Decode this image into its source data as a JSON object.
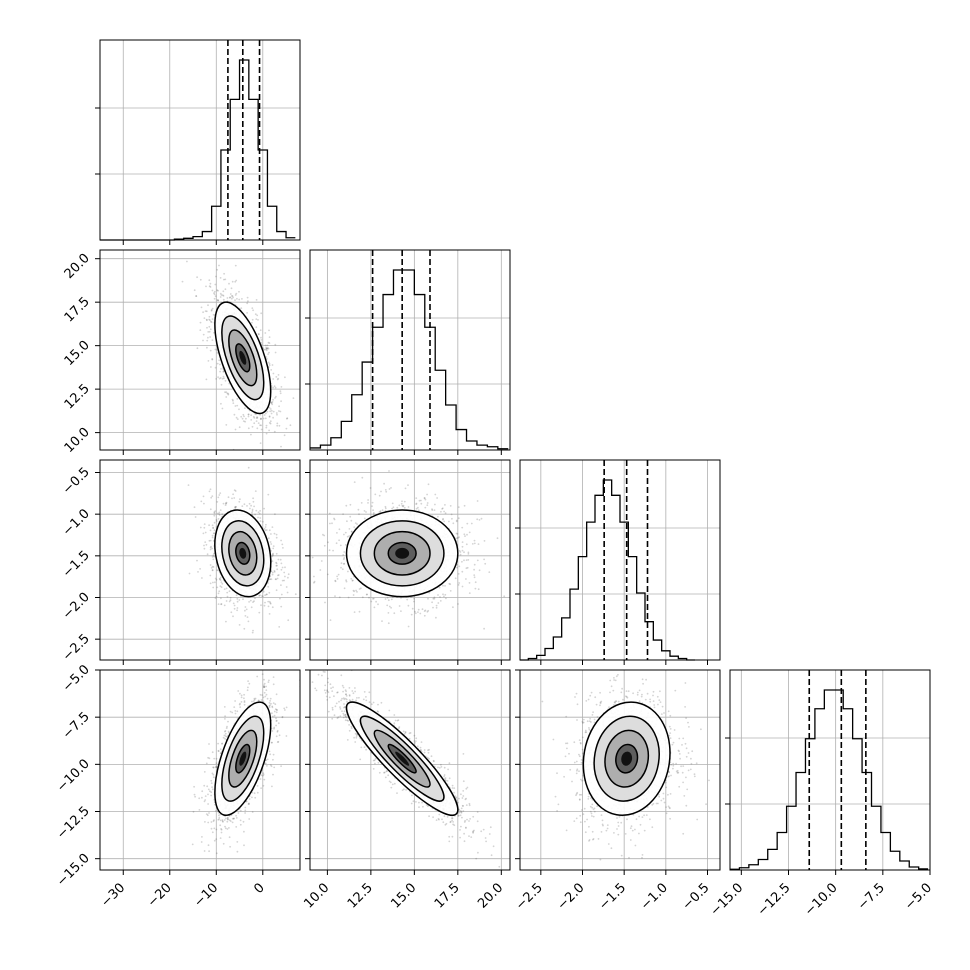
{
  "chart_data": {
    "type": "corner",
    "title": "",
    "parameters": [
      {
        "range": [
          -35,
          8
        ],
        "ticks": [
          -30,
          -20,
          -10,
          0
        ],
        "tick_labels": [
          "−30",
          "−20",
          "−10",
          "0"
        ],
        "hist_bins": [
          -35,
          -33,
          -31,
          -29,
          -27,
          -25,
          -23,
          -21,
          -19,
          -17,
          -15,
          -13,
          -11,
          -9,
          -7,
          -5,
          -3,
          -1,
          1,
          3,
          5,
          7
        ],
        "hist_counts": [
          0,
          0,
          0,
          0,
          0,
          0,
          0,
          0,
          3,
          6,
          12,
          30,
          120,
          320,
          500,
          640,
          500,
          320,
          120,
          30,
          8
        ],
        "quantiles": [
          -7.5,
          -4.3,
          -0.7
        ]
      },
      {
        "range": [
          9,
          20.5
        ],
        "ticks": [
          10.0,
          12.5,
          15.0,
          17.5,
          20.0
        ],
        "tick_labels": [
          "10.0",
          "12.5",
          "15.0",
          "17.5",
          "20.0"
        ],
        "hist_bins": [
          9.0,
          9.6,
          10.2,
          10.8,
          11.4,
          12.0,
          12.6,
          13.2,
          13.8,
          14.4,
          15.0,
          15.6,
          16.2,
          16.8,
          17.4,
          18.0,
          18.6,
          19.2,
          19.8,
          20.4
        ],
        "hist_counts": [
          5,
          12,
          30,
          70,
          135,
          215,
          300,
          380,
          440,
          440,
          380,
          300,
          195,
          110,
          50,
          22,
          12,
          8,
          3
        ],
        "quantiles": [
          12.6,
          14.3,
          15.9
        ]
      },
      {
        "range": [
          -2.75,
          -0.35
        ],
        "ticks": [
          -2.5,
          -2.0,
          -1.5,
          -1.0,
          -0.5
        ],
        "tick_labels": [
          "−2.5",
          "−2.0",
          "−1.5",
          "−1.0",
          "−0.5"
        ],
        "hist_bins": [
          -2.75,
          -2.65,
          -2.55,
          -2.45,
          -2.35,
          -2.25,
          -2.15,
          -2.05,
          -1.95,
          -1.85,
          -1.75,
          -1.65,
          -1.55,
          -1.45,
          -1.35,
          -1.25,
          -1.15,
          -1.05,
          -0.95,
          -0.85,
          -0.75,
          -0.65
        ],
        "hist_counts": [
          0,
          4,
          12,
          30,
          60,
          110,
          185,
          270,
          360,
          430,
          470,
          430,
          360,
          270,
          175,
          100,
          52,
          24,
          10,
          4,
          0
        ],
        "quantiles": [
          -1.74,
          -1.47,
          -1.22
        ]
      },
      {
        "range": [
          -15.6,
          -5.0
        ],
        "ticks": [
          -15.0,
          -12.5,
          -10.0,
          -7.5,
          -5.0
        ],
        "tick_labels": [
          "−15.0",
          "−12.5",
          "−10.0",
          "−7.5",
          "−5.0"
        ],
        "hist_bins": [
          -15.6,
          -15.1,
          -14.6,
          -14.1,
          -13.6,
          -13.1,
          -12.6,
          -12.1,
          -11.6,
          -11.1,
          -10.6,
          -10.1,
          -9.6,
          -9.1,
          -8.6,
          -8.1,
          -7.6,
          -7.1,
          -6.6,
          -6.1,
          -5.6,
          -5.1
        ],
        "hist_counts": [
          2,
          6,
          14,
          28,
          55,
          100,
          170,
          260,
          350,
          430,
          480,
          480,
          430,
          350,
          260,
          170,
          100,
          50,
          24,
          8,
          3
        ],
        "quantiles": [
          -11.4,
          -9.7,
          -8.4
        ]
      }
    ],
    "pairs": [
      {
        "row": 1,
        "col": 0,
        "mean": [
          -4.3,
          14.3
        ],
        "sd": [
          3.0,
          1.6
        ],
        "corr": -0.6
      },
      {
        "row": 2,
        "col": 0,
        "mean": [
          -4.3,
          -1.47
        ],
        "sd": [
          3.0,
          0.26
        ],
        "corr": -0.2
      },
      {
        "row": 2,
        "col": 1,
        "mean": [
          14.3,
          -1.47
        ],
        "sd": [
          1.6,
          0.26
        ],
        "corr": 0.0
      },
      {
        "row": 3,
        "col": 0,
        "mean": [
          -4.3,
          -9.7
        ],
        "sd": [
          3.0,
          1.5
        ],
        "corr": 0.6
      },
      {
        "row": 3,
        "col": 1,
        "mean": [
          14.3,
          -9.7
        ],
        "sd": [
          1.6,
          1.5
        ],
        "corr": -0.9
      },
      {
        "row": 3,
        "col": 2,
        "mean": [
          -1.47,
          -9.7
        ],
        "sd": [
          0.26,
          1.5
        ],
        "corr": 0.1
      }
    ],
    "grid": true,
    "contour_levels": [
      0.5,
      1.0,
      1.5,
      2.0
    ],
    "colors": {
      "line": "#000000",
      "grid": "#b0b0b0",
      "points": "#555555"
    }
  }
}
